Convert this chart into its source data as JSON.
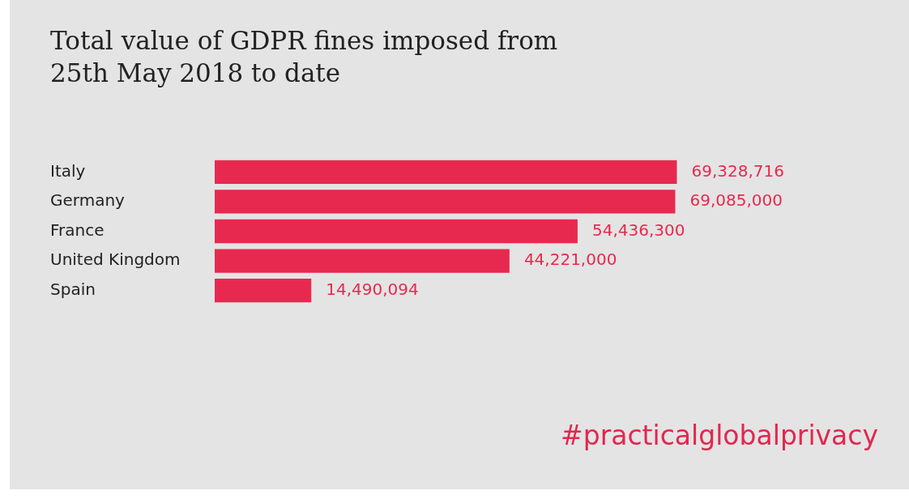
{
  "chart_data": {
    "type": "bar",
    "orientation": "horizontal",
    "title": "Total value of GDPR fines imposed from\n25th May 2018 to date",
    "categories": [
      "Italy",
      "Germany",
      "France",
      "United Kingdom",
      "Spain"
    ],
    "values": [
      69328716,
      69085000,
      54436300,
      44221000,
      14490094
    ],
    "value_labels": [
      "69,328,716",
      "69,085,000",
      "54,436,300",
      "44,221,000",
      "14,490,094"
    ],
    "color": "#e8294f",
    "legend": false,
    "tick_labels": "y",
    "annotations": [
      "#practicalglobalprivacy"
    ]
  }
}
